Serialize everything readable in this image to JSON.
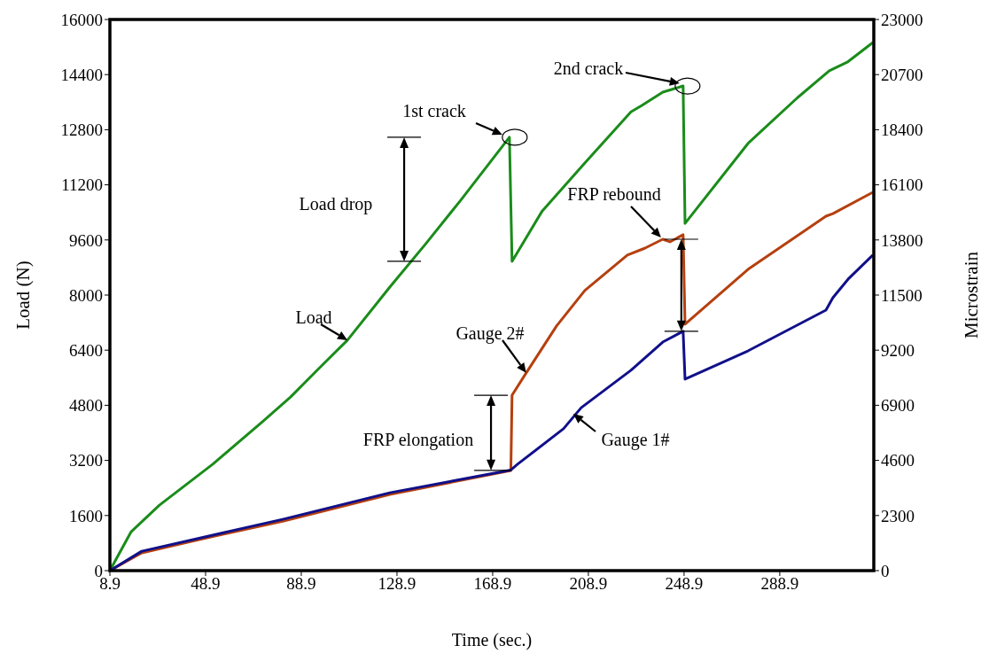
{
  "chart_data": {
    "type": "line",
    "xlabel": "Time (sec.)",
    "ylabel": "Load (N)",
    "y2label": "Microstrain",
    "xlim": [
      8.9,
      328.2
    ],
    "xticks": [
      8.9,
      48.9,
      88.9,
      128.9,
      168.9,
      208.9,
      248.9,
      288.9
    ],
    "ylim": [
      0,
      16000
    ],
    "yticks": [
      0,
      1600,
      3200,
      4800,
      6400,
      8000,
      9600,
      11200,
      12800,
      14400,
      16000
    ],
    "y2lim": [
      0,
      23000
    ],
    "y2ticks": [
      0,
      2300,
      4600,
      6900,
      9200,
      11500,
      13800,
      16100,
      18400,
      20700,
      23000
    ],
    "grid": false,
    "legend": false,
    "marker": "none",
    "line_style": "solid",
    "series": [
      {
        "color": "#1a8c1a",
        "x": [
          8.9,
          17.8,
          29.6,
          51.9,
          72.6,
          84.4,
          96.3,
          108.2,
          125.9,
          140.7,
          155.5,
          175.9,
          177.0,
          189.6,
          207.4,
          226.7,
          231.1,
          240.0,
          248.5,
          249.3,
          275.6,
          296.3,
          309.6,
          317.1,
          327.8
        ],
        "values": [
          0,
          1130,
          1900,
          3090,
          4320,
          5040,
          5870,
          6690,
          8230,
          9470,
          10750,
          12580,
          8980,
          10440,
          11830,
          13320,
          13500,
          13890,
          14070,
          10080,
          12400,
          13730,
          14510,
          14760,
          15330
        ]
      },
      {
        "color": "#b5400f",
        "axis": "y2",
        "x": [
          8.9,
          22.2,
          44.5,
          81.5,
          125.9,
          176.5,
          177.0,
          182.2,
          195.6,
          207.4,
          225.2,
          232.6,
          240.0,
          243.0,
          248.5,
          249.3,
          275.6,
          308.2,
          311.1,
          327.8
        ],
        "values": [
          0,
          740,
          1260,
          2070,
          3180,
          4180,
          7320,
          8140,
          10210,
          11690,
          13170,
          13460,
          13830,
          13720,
          14020,
          10280,
          12570,
          14790,
          14900,
          15790
        ]
      },
      {
        "color": "#10108a",
        "axis": "y2",
        "x": [
          8.9,
          22.2,
          81.5,
          125.9,
          176.5,
          179.3,
          198.5,
          205.9,
          226.7,
          240.0,
          248.5,
          249.3,
          275.6,
          308.2,
          311.1,
          317.8,
          327.8
        ],
        "values": [
          0,
          810,
          2150,
          3250,
          4200,
          4440,
          5920,
          6800,
          8360,
          9540,
          9990,
          7990,
          9170,
          10870,
          11390,
          12200,
          13170
        ]
      }
    ],
    "annotations": [
      {
        "text": "1st crack",
        "x": 175.9,
        "y": 12580
      },
      "2nd crack",
      "Load drop",
      {
        "text": "FRP elongation",
        "x": 176.5,
        "y": 2910
      },
      {
        "text": "FRP rebound",
        "x": 240.0,
        "y": 9620
      },
      {
        "text": "Load",
        "x": 108.2,
        "y": 6690
      },
      {
        "text": "Gauge 2#",
        "x": 182.9,
        "y": 5740
      },
      {
        "text": "Gauge 1#",
        "x": 202.6,
        "y": 4550
      }
    ]
  }
}
